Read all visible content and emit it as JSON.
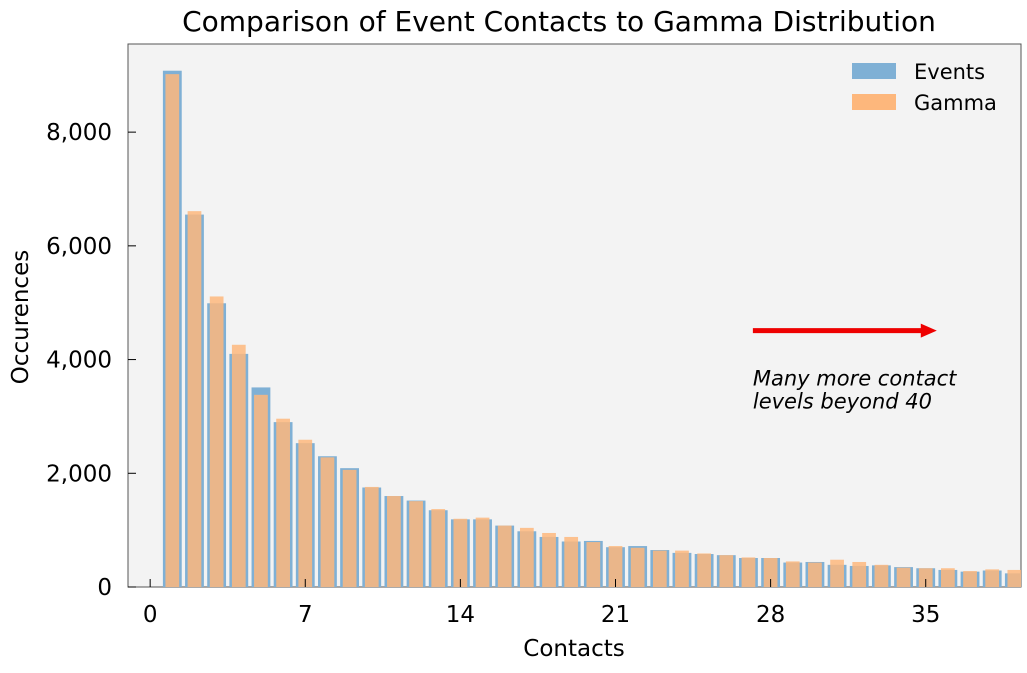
{
  "chart_data": {
    "type": "bar",
    "title": "Comparison of Event Contacts to Gamma Distribution",
    "xlabel": "Contacts",
    "ylabel": "Occurences",
    "xlim": [
      -1,
      39.3
    ],
    "ylim": [
      0,
      9550
    ],
    "xticks": [
      0,
      7,
      14,
      21,
      28,
      35
    ],
    "xtick_labels": [
      "0",
      "7",
      "14",
      "21",
      "28",
      "35"
    ],
    "yticks": [
      0,
      2000,
      4000,
      6000,
      8000
    ],
    "ytick_labels": [
      "0",
      "2,000",
      "4,000",
      "6,000",
      "8,000"
    ],
    "grid": false,
    "legend_position": "top-right",
    "x": [
      1,
      2,
      3,
      4,
      5,
      6,
      7,
      8,
      9,
      10,
      11,
      12,
      13,
      14,
      15,
      16,
      17,
      18,
      19,
      20,
      21,
      22,
      23,
      24,
      25,
      26,
      27,
      28,
      29,
      30,
      31,
      32,
      33,
      34,
      35,
      36,
      37,
      38,
      39
    ],
    "series": [
      {
        "name": "Events",
        "color": "#7fb0d5",
        "values": [
          9080,
          6550,
          4990,
          4100,
          3510,
          2900,
          2530,
          2300,
          2090,
          1750,
          1600,
          1520,
          1350,
          1190,
          1190,
          1080,
          980,
          880,
          800,
          810,
          700,
          720,
          650,
          600,
          580,
          560,
          510,
          510,
          430,
          440,
          390,
          370,
          380,
          350,
          330,
          300,
          270,
          290,
          240
        ]
      },
      {
        "name": "Gamma",
        "color": "#fdb77c",
        "values": [
          9020,
          6610,
          5110,
          4260,
          3380,
          2960,
          2590,
          2280,
          2060,
          1760,
          1600,
          1510,
          1370,
          1200,
          1220,
          1080,
          1040,
          950,
          880,
          790,
          720,
          690,
          640,
          640,
          590,
          560,
          520,
          510,
          450,
          430,
          480,
          440,
          390,
          340,
          330,
          330,
          280,
          310,
          300
        ]
      }
    ],
    "annotation": {
      "text_line1": "Many more contact",
      "text_line2": "levels beyond 40",
      "arrow_color": "#ee0000",
      "arrow_from": [
        27.2,
        4510
      ],
      "arrow_to": [
        35.5,
        4510
      ],
      "text_x": 27.2,
      "text_y": 3540
    },
    "axes_background": "#f3f3f3"
  }
}
